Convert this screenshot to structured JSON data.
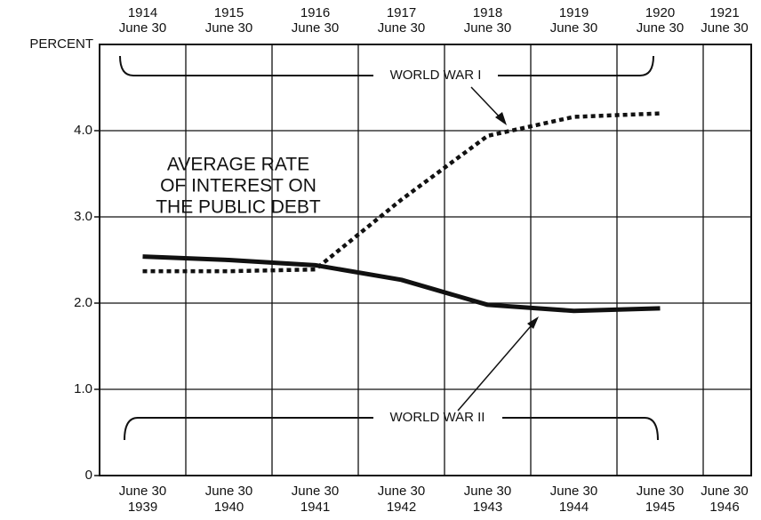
{
  "chart_data": {
    "type": "line",
    "y_label": "PERCENT",
    "annotation": [
      "AVERAGE RATE",
      "OF INTEREST ON",
      "THE PUBLIC DEBT"
    ],
    "top_categories": [
      {
        "year": "1914",
        "date": "June 30"
      },
      {
        "year": "1915",
        "date": "June 30"
      },
      {
        "year": "1916",
        "date": "June 30"
      },
      {
        "year": "1917",
        "date": "June 30"
      },
      {
        "year": "1918",
        "date": "June 30"
      },
      {
        "year": "1919",
        "date": "June 30"
      },
      {
        "year": "1920",
        "date": "June 30"
      },
      {
        "year": "1921",
        "date": "June 30"
      }
    ],
    "bottom_categories": [
      {
        "year": "1939",
        "date": "June 30"
      },
      {
        "year": "1940",
        "date": "June 30"
      },
      {
        "year": "1941",
        "date": "June 30"
      },
      {
        "year": "1942",
        "date": "June 30"
      },
      {
        "year": "1943",
        "date": "June 30"
      },
      {
        "year": "1944",
        "date": "June 30"
      },
      {
        "year": "1945",
        "date": "June 30"
      },
      {
        "year": "1946",
        "date": "June 30"
      }
    ],
    "series": [
      {
        "name": "WORLD WAR I",
        "color": "#111111",
        "style": "dotted",
        "x_axis": "top",
        "values": [
          2.37,
          2.37,
          2.39,
          3.2,
          3.94,
          4.16,
          4.2,
          null
        ]
      },
      {
        "name": "WORLD WAR II",
        "color": "#111111",
        "style": "solid",
        "x_axis": "bottom",
        "values": [
          2.54,
          2.5,
          2.44,
          2.27,
          1.98,
          1.91,
          1.94,
          null
        ]
      }
    ],
    "ylim": [
      0,
      5
    ],
    "yticks": [
      0,
      {
        "value": 1,
        "label": "1.0"
      },
      {
        "value": 2,
        "label": "2.0"
      },
      {
        "value": 3,
        "label": "3.0"
      },
      {
        "value": 4,
        "label": "4.0"
      }
    ],
    "grid": true
  }
}
